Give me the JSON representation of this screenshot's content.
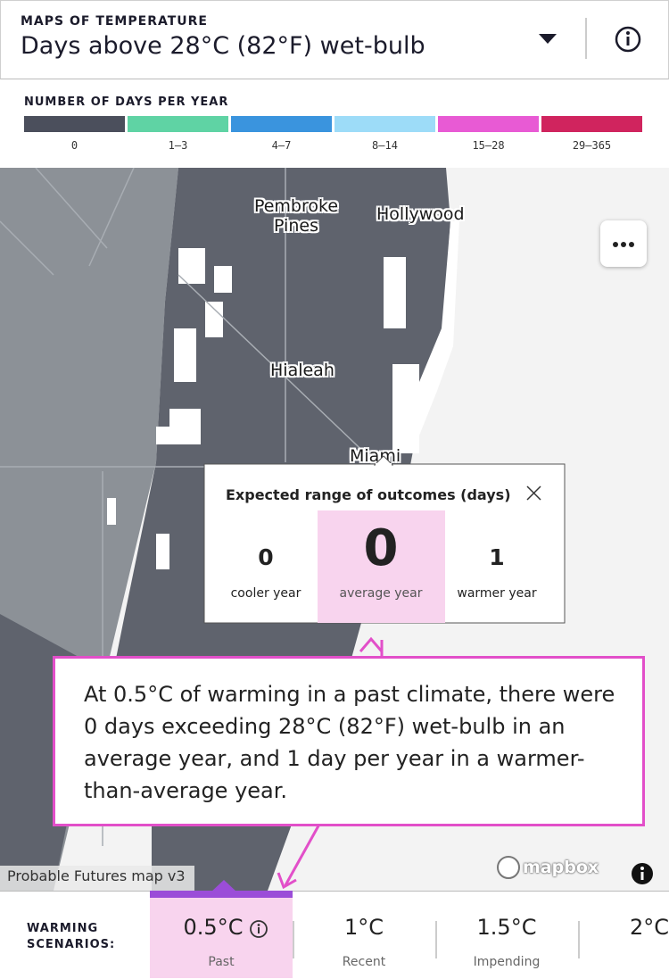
{
  "header": {
    "label": "MAPS OF TEMPERATURE",
    "title": "Days above 28°C (82°F) wet-bulb"
  },
  "legend": {
    "title": "NUMBER OF DAYS PER YEAR",
    "bins": [
      {
        "label": "0",
        "color": "#4b4f5c"
      },
      {
        "label": "1–3",
        "color": "#5fd3a4"
      },
      {
        "label": "4–7",
        "color": "#3a94de"
      },
      {
        "label": "8–14",
        "color": "#9ddcf8"
      },
      {
        "label": "15–28",
        "color": "#e85ad4"
      },
      {
        "label": "29–365",
        "color": "#d0245e"
      }
    ]
  },
  "map": {
    "places": [
      "Pembroke Pines",
      "Hollywood",
      "Hialeah",
      "Miami"
    ],
    "attribution": "Probable Futures map v3",
    "logo": "mapbox"
  },
  "popup": {
    "title": "Expected range of outcomes (days)",
    "outcomes": [
      {
        "value": 0,
        "label": "cooler year"
      },
      {
        "value": 0,
        "label": "average year"
      },
      {
        "value": 1,
        "label": "warmer year"
      }
    ]
  },
  "callout": "At 0.5°C of warming in a past climate, there were 0 days exceeding 28°C (82°F) wet-bulb in an average year, and 1 day per year in a warmer-than-average year.",
  "scenarios": {
    "label": "WARMING SCENARIOS:",
    "items": [
      {
        "value": "0.5°C",
        "label": "Past"
      },
      {
        "value": "1°C",
        "label": "Recent"
      },
      {
        "value": "1.5°C",
        "label": "Impending"
      },
      {
        "value": "2°C"
      }
    ]
  }
}
